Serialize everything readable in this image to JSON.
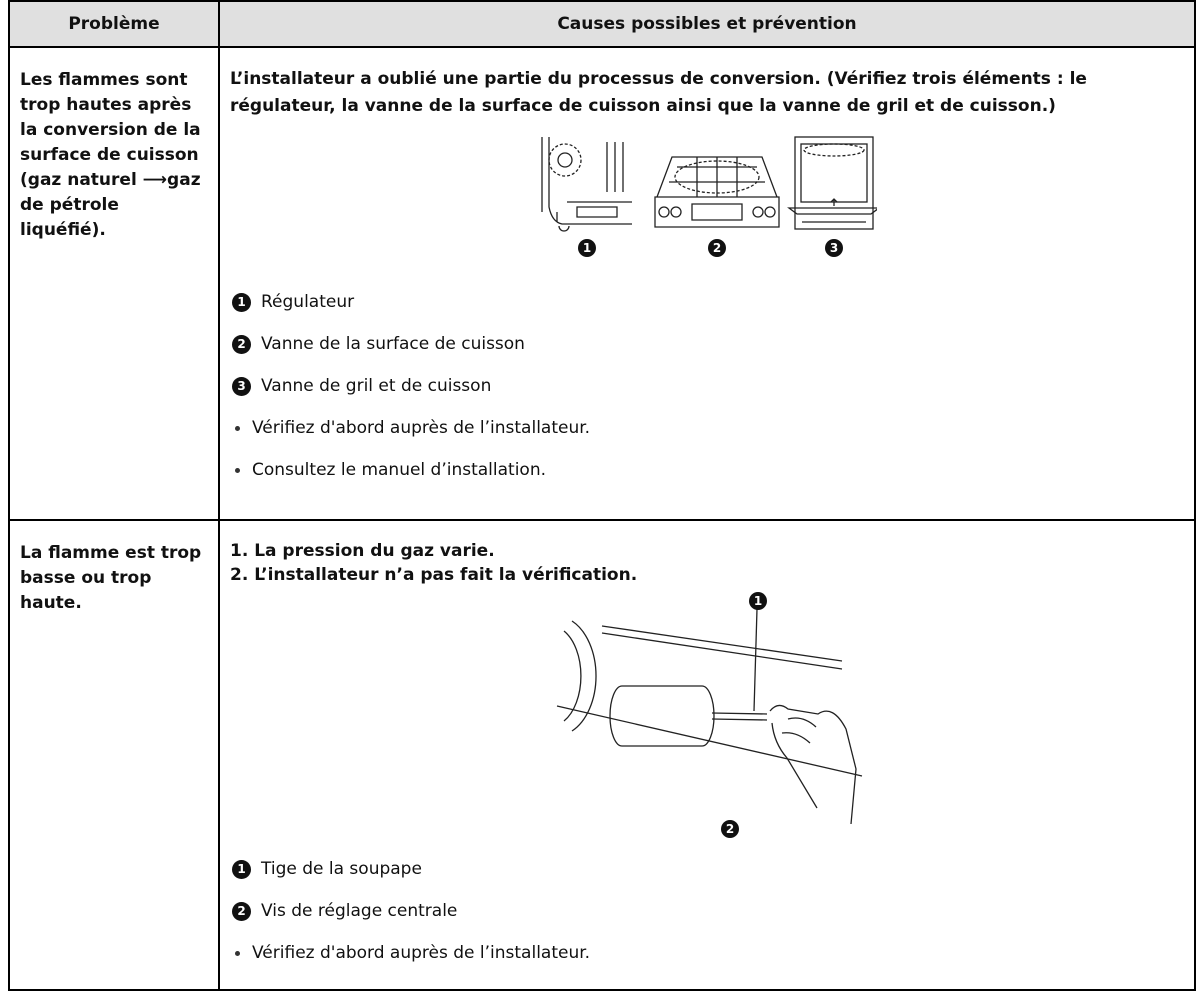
{
  "header": {
    "problem": "Problème",
    "causes": "Causes possibles et prévention"
  },
  "rows": [
    {
      "problem": "Les flammes sont trop hautes après la conversion de la surface de cuisson (gaz naturel ⟶gaz de pétrole liquéfié).",
      "causes": [
        "L’installateur a oublié une partie du processus de conversion. (Vérifiez trois éléments : le régulateur, la vanne de la surface de cuisson ainsi que la vanne de gril et de cuisson.)"
      ],
      "figure_callouts": [
        "1",
        "2",
        "3"
      ],
      "legend": [
        {
          "number": "1",
          "text": "Régulateur"
        },
        {
          "number": "2",
          "text": "Vanne de la surface de cuisson"
        },
        {
          "number": "3",
          "text": "Vanne de gril et de cuisson"
        }
      ],
      "notes": [
        "Vérifiez d'abord auprès de l’installateur.",
        "Consultez le manuel d’installation."
      ]
    },
    {
      "problem": "La flamme est trop basse ou trop haute.",
      "causes": [
        "1. La pression du gaz varie.",
        "2. L’installateur n’a pas fait la vérification."
      ],
      "figure_callouts": [
        "1",
        "2"
      ],
      "legend": [
        {
          "number": "1",
          "text": "Tige de la soupape"
        },
        {
          "number": "2",
          "text": "Vis de réglage centrale"
        }
      ],
      "notes": [
        "Vérifiez d'abord auprès de l’installateur."
      ]
    }
  ]
}
